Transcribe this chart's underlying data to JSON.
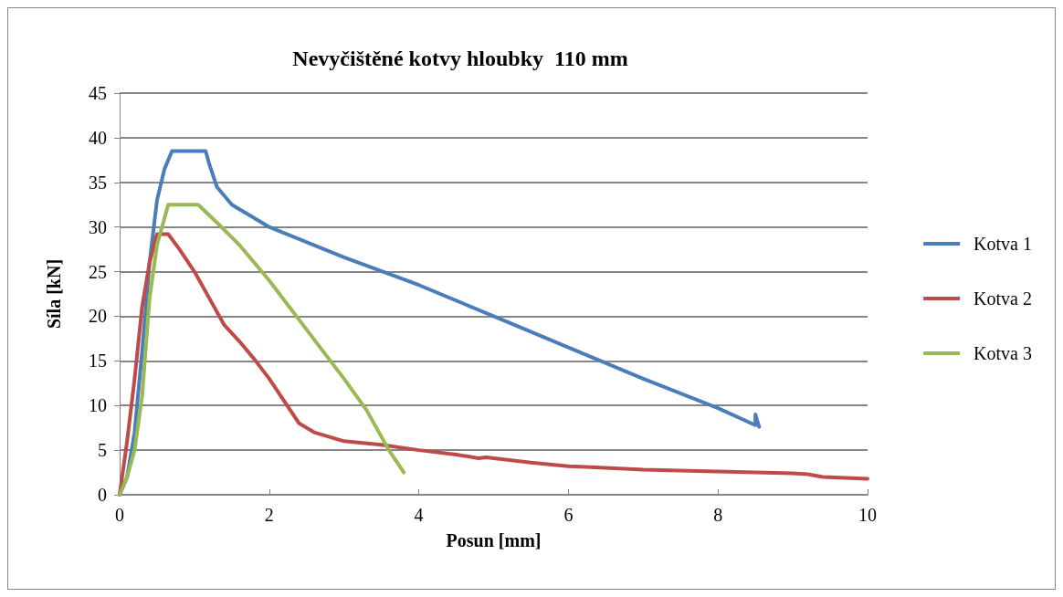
{
  "chart_data": {
    "type": "line",
    "title": "Nevyčištěné kotvy hloubky  110 mm",
    "xlabel": "Posun [mm]",
    "ylabel": "Síla [kN]",
    "xlim": [
      0,
      10
    ],
    "xticks": [
      0,
      2,
      4,
      6,
      8,
      10
    ],
    "ylim": [
      0,
      45
    ],
    "yticks": [
      0,
      5,
      10,
      15,
      20,
      25,
      30,
      35,
      40,
      45
    ],
    "grid": "y",
    "legend": "right",
    "marker": "none",
    "line_style": "solid",
    "series": [
      {
        "name": "Kotva 1",
        "color": "#4a7ebb",
        "x": [
          0,
          0.1,
          0.2,
          0.3,
          0.4,
          0.5,
          0.6,
          0.7,
          1.15,
          1.2,
          1.3,
          1.5,
          1.7,
          2,
          3,
          4,
          5,
          6,
          7,
          8,
          8.5,
          8.5,
          8.55
        ],
        "values": [
          0,
          2,
          7,
          16,
          26,
          33,
          36.5,
          38.5,
          38.5,
          37,
          34.5,
          32.5,
          31.5,
          30,
          26.6,
          23.5,
          20,
          16.5,
          13,
          9.7,
          7.8,
          9,
          7.6
        ]
      },
      {
        "name": "Kotva 2",
        "color": "#be4b48",
        "x": [
          0,
          0.1,
          0.2,
          0.3,
          0.4,
          0.5,
          0.65,
          0.8,
          1,
          1.2,
          1.4,
          1.6,
          1.8,
          2,
          2.2,
          2.4,
          2.6,
          3,
          3.5,
          4,
          4.5,
          4.8,
          4.9,
          5.5,
          6,
          6.3,
          7,
          8,
          9,
          9.2,
          9.4,
          10
        ],
        "values": [
          0,
          6,
          13,
          21,
          26,
          29.2,
          29.2,
          27.5,
          25,
          22,
          19,
          17.2,
          15.2,
          13,
          10.5,
          8,
          7,
          6,
          5.6,
          5,
          4.5,
          4.1,
          4.2,
          3.6,
          3.2,
          3.1,
          2.8,
          2.6,
          2.4,
          2.3,
          2,
          1.8
        ]
      },
      {
        "name": "Kotva 3",
        "color": "#98b954",
        "x": [
          0,
          0.1,
          0.2,
          0.3,
          0.4,
          0.5,
          0.65,
          1.05,
          1.3,
          1.6,
          2,
          2.5,
          3,
          3.3,
          3.6,
          3.8
        ],
        "values": [
          0,
          2,
          5,
          11,
          22,
          28,
          32.5,
          32.5,
          30.5,
          28,
          24,
          18.5,
          13,
          9.5,
          5,
          2.5
        ]
      }
    ]
  }
}
